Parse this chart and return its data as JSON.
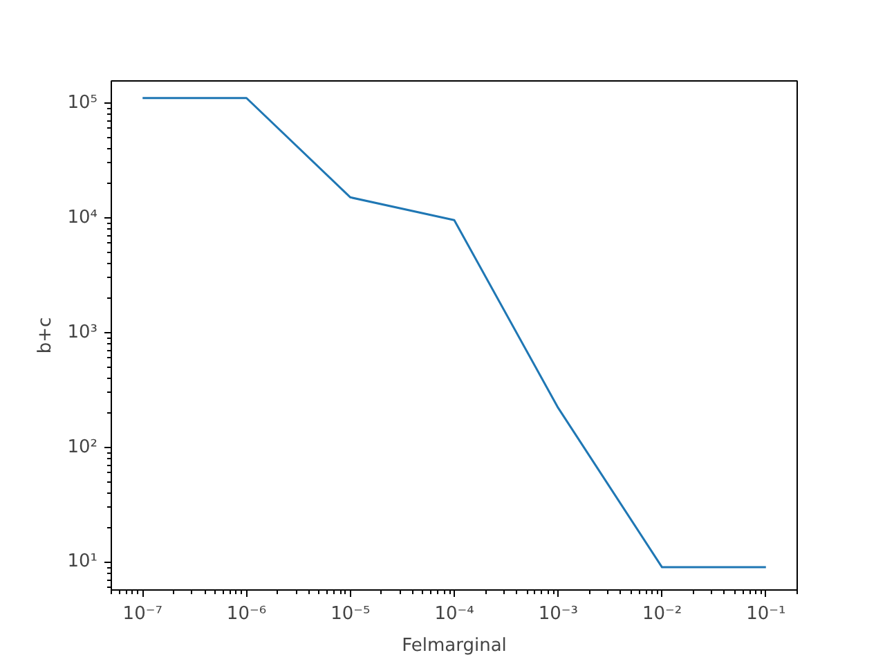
{
  "chart_data": {
    "type": "line",
    "xlabel": "Felmarginal",
    "ylabel": "b+c",
    "log": "xy",
    "grid": false,
    "x": [
      1e-07,
      1e-06,
      1e-05,
      0.0001,
      0.001,
      0.01,
      0.1
    ],
    "series": [
      {
        "color": "#1f77b4",
        "values": [
          110000,
          110000,
          15000,
          9500,
          220,
          9,
          9
        ]
      }
    ],
    "xlim": [
      5e-08,
      0.2
    ],
    "ylim": [
      5.7,
      155000
    ],
    "xticks": [
      {
        "value": 1e-07,
        "label": "10⁻⁷"
      },
      {
        "value": 1e-06,
        "label": "10⁻⁶"
      },
      {
        "value": 1e-05,
        "label": "10⁻⁵"
      },
      {
        "value": 0.0001,
        "label": "10⁻⁴"
      },
      {
        "value": 0.001,
        "label": "10⁻³"
      },
      {
        "value": 0.01,
        "label": "10⁻²"
      },
      {
        "value": 0.1,
        "label": "10⁻¹"
      }
    ],
    "yticks": [
      {
        "value": 10,
        "label": "10¹"
      },
      {
        "value": 100,
        "label": "10²"
      },
      {
        "value": 1000,
        "label": "10³"
      },
      {
        "value": 10000,
        "label": "10⁴"
      },
      {
        "value": 100000,
        "label": "10⁵"
      }
    ]
  }
}
